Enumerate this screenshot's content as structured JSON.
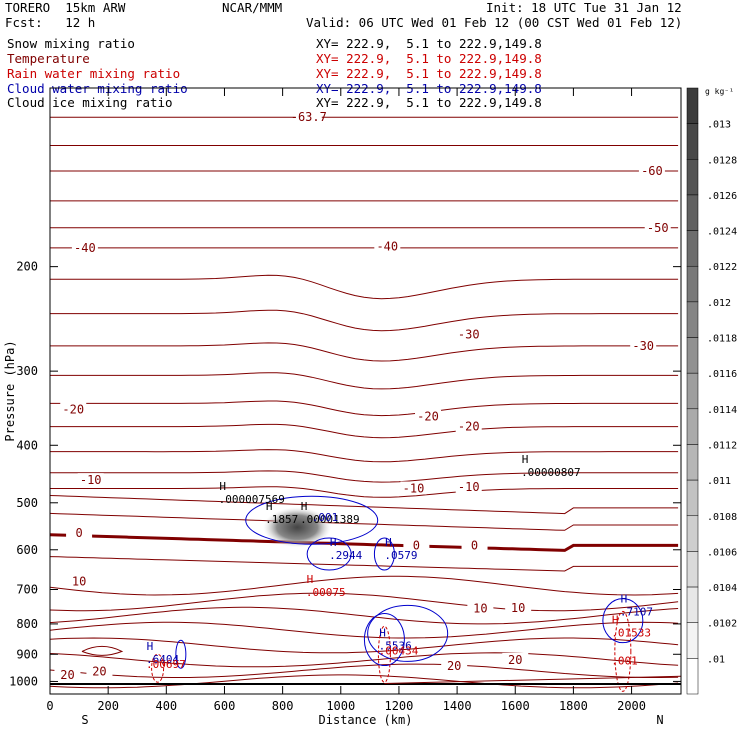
{
  "header": {
    "model": "TORERO  15km ARW",
    "org": "NCAR/MMM",
    "init": "Init: 18 UTC Tue 31 Jan 12",
    "fcst": "Fcst:   12 h",
    "valid": "Valid: 06 UTC Wed 01 Feb 12 (00 CST Wed 01 Feb 12)"
  },
  "legend": [
    {
      "name": "Snow mixing ratio",
      "color": "#000000",
      "xy": "XY= 222.9,  5.1 to 222.9,149.8"
    },
    {
      "name": "Temperature",
      "color": "#800000",
      "xy": "XY= 222.9,  5.1 to 222.9,149.8"
    },
    {
      "name": "Rain water mixing ratio",
      "color": "#cc0000",
      "xy": "XY= 222.9,  5.1 to 222.9,149.8"
    },
    {
      "name": "Cloud water mixing ratio",
      "color": "#0000aa",
      "xy": "XY= 222.9,  5.1 to 222.9,149.8"
    },
    {
      "name": "Cloud ice mixing ratio",
      "color": "#000000",
      "xy": "XY= 222.9,  5.1 to 222.9,149.8"
    }
  ],
  "chart_data": {
    "type": "contour",
    "xlabel": "Distance (km)",
    "ylabel": "Pressure (hPa)",
    "xlim": [
      0,
      2170
    ],
    "ylim": [
      100,
      1050
    ],
    "y_scale": "log",
    "x_ticks": [
      0,
      200,
      400,
      600,
      800,
      1000,
      1200,
      1400,
      1600,
      1800,
      2000
    ],
    "x_tick_labels": [
      "0",
      "200",
      "400",
      "600",
      "800",
      "1000",
      "1200",
      "1400",
      "1600",
      "1800",
      "2000"
    ],
    "y_ticks": [
      200,
      300,
      400,
      500,
      600,
      700,
      800,
      900,
      1000
    ],
    "y_tick_labels": [
      "200",
      "300",
      "400",
      "500",
      "600",
      "700",
      "800",
      "900",
      "1000"
    ],
    "end_labels": {
      "left": "S",
      "right": "N"
    },
    "colorbar": {
      "unit": "g kg⁻¹",
      "levels": [
        ".013",
        ".0128",
        ".0126",
        ".0124",
        ".0122",
        ".012",
        ".0118",
        ".0116",
        ".0114",
        ".0112",
        ".011",
        ".0108",
        ".0106",
        ".0104",
        ".0102",
        ".01"
      ]
    },
    "temperature_labels": [
      {
        "text": "-63.7",
        "x": 890,
        "p": 112
      },
      {
        "text": "-60",
        "x": 2070,
        "p": 138
      },
      {
        "text": "-50",
        "x": 2090,
        "p": 172
      },
      {
        "text": "-40",
        "x": 120,
        "p": 186
      },
      {
        "text": "-40",
        "x": 1160,
        "p": 185
      },
      {
        "text": "-30",
        "x": 1440,
        "p": 260
      },
      {
        "text": "-30",
        "x": 2040,
        "p": 272
      },
      {
        "text": "-20",
        "x": 80,
        "p": 348
      },
      {
        "text": "-20",
        "x": 1300,
        "p": 358
      },
      {
        "text": "-20",
        "x": 1440,
        "p": 372
      },
      {
        "text": "-10",
        "x": 140,
        "p": 458
      },
      {
        "text": "-10",
        "x": 1250,
        "p": 473
      },
      {
        "text": "-10",
        "x": 1440,
        "p": 470
      },
      {
        "text": "0",
        "x": 100,
        "p": 562
      },
      {
        "text": "0",
        "x": 1260,
        "p": 590
      },
      {
        "text": "0",
        "x": 1460,
        "p": 590
      },
      {
        "text": "10",
        "x": 100,
        "p": 678
      },
      {
        "text": "10",
        "x": 1480,
        "p": 754
      },
      {
        "text": "10",
        "x": 1610,
        "p": 752
      },
      {
        "text": "20",
        "x": 60,
        "p": 975
      },
      {
        "text": "20",
        "x": 170,
        "p": 963
      },
      {
        "text": "20",
        "x": 1390,
        "p": 942
      },
      {
        "text": "20",
        "x": 1600,
        "p": 920
      }
    ],
    "extrema_labels": [
      {
        "mark": "H",
        "value": ".000007569",
        "x": 580,
        "p": 495,
        "color": "#000000"
      },
      {
        "mark": "H",
        "value": ".1857",
        "x": 740,
        "p": 535,
        "color": "#000000"
      },
      {
        "mark": "H",
        "value": ".00001389",
        "x": 860,
        "p": 535,
        "color": "#000000"
      },
      {
        "mark": "",
        "value": ".001",
        "x": 900,
        "p": 530,
        "color": "#0000aa"
      },
      {
        "mark": "H",
        "value": ".00000807",
        "x": 1620,
        "p": 445,
        "color": "#000000"
      },
      {
        "mark": "H",
        "value": ".2944",
        "x": 960,
        "p": 615,
        "color": "#0000aa"
      },
      {
        "mark": "H",
        "value": ".0579",
        "x": 1150,
        "p": 615,
        "color": "#0000aa"
      },
      {
        "mark": "H",
        "value": ".00075",
        "x": 880,
        "p": 710,
        "color": "#cc0000"
      },
      {
        "mark": "H",
        "value": ".7107",
        "x": 1960,
        "p": 765,
        "color": "#0000aa"
      },
      {
        "mark": "H",
        "value": ".01533",
        "x": 1930,
        "p": 830,
        "color": "#cc0000"
      },
      {
        "mark": "H",
        "value": ".5536",
        "x": 1130,
        "p": 873,
        "color": "#0000aa"
      },
      {
        "mark": "",
        "value": ".00434",
        "x": 1130,
        "p": 890,
        "color": "#cc0000"
      },
      {
        "mark": "",
        "value": ".001",
        "x": 1930,
        "p": 925,
        "color": "#cc0000"
      },
      {
        "mark": "H",
        "value": ".6404",
        "x": 330,
        "p": 920,
        "color": "#0000aa"
      },
      {
        "mark": "",
        "value": ".00697",
        "x": 330,
        "p": 938,
        "color": "#cc0000"
      }
    ]
  }
}
